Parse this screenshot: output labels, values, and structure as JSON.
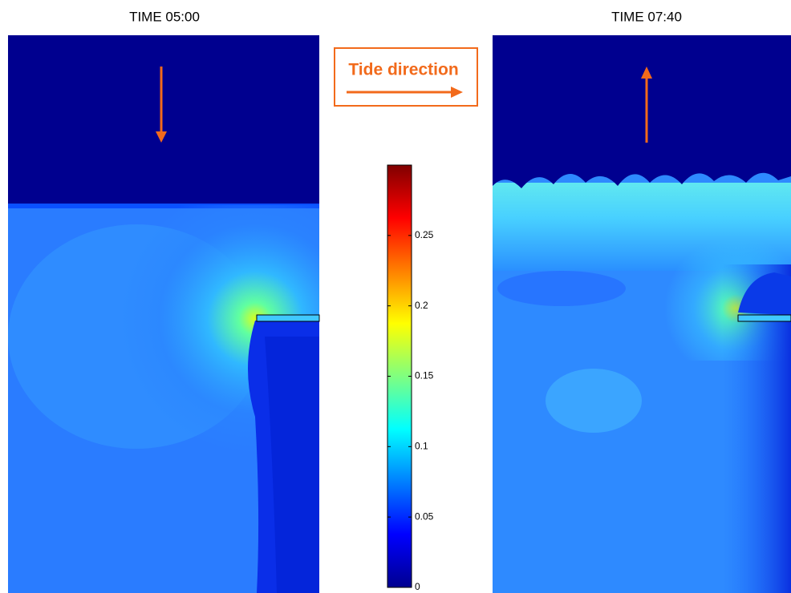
{
  "panels": [
    {
      "title": "TIME 05:00"
    },
    {
      "title": "TIME 07:40"
    }
  ],
  "legend": {
    "label": "Tide direction"
  },
  "colorbar": {
    "lim": [
      0,
      0.3
    ],
    "ticks": [
      0,
      0.05,
      0.1,
      0.15,
      0.2,
      0.25
    ]
  }
}
